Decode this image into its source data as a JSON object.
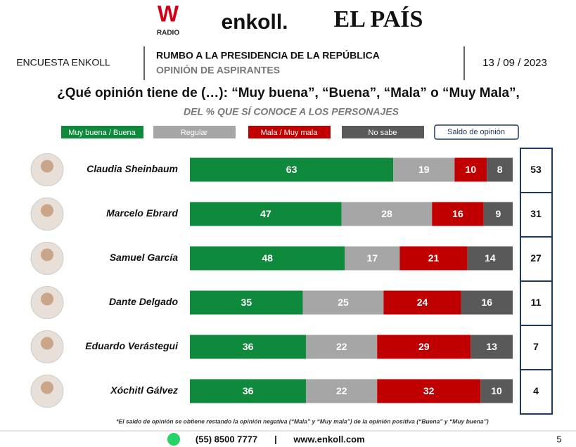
{
  "header": {
    "logo_radio_mark": "W",
    "logo_radio_text": "RADIO",
    "logo_enkoll": "enkoll.",
    "logo_elpais": "EL PAÍS",
    "survey": "ENCUESTA ENKOLL",
    "heading": "RUMBO A LA PRESIDENCIA DE LA REPÚBLICA",
    "subheading": "OPINIÓN DE ASPIRANTES",
    "date": "13 / 09 / 2023"
  },
  "chart_data": {
    "type": "stacked-bar-horizontal",
    "title": "¿Qué opinión tiene de (…): “Muy buena”, “Buena”, “Mala” o “Muy Mala”,",
    "subtitle": "DEL % QUE SÍ CONOCE A LOS PERSONAJES",
    "categories": [
      "Claudia Sheinbaum",
      "Marcelo Ebrard",
      "Samuel García",
      "Dante Delgado",
      "Eduardo Verástegui",
      "Xóchitl Gálvez"
    ],
    "xlim": [
      0,
      100
    ],
    "series": [
      {
        "name": "Muy buena / Buena",
        "color": "#0f8a3c",
        "values": [
          63,
          47,
          48,
          35,
          36,
          36
        ]
      },
      {
        "name": "Regular",
        "color": "#a6a6a6",
        "values": [
          19,
          28,
          17,
          25,
          22,
          22
        ]
      },
      {
        "name": "Mala / Muy mala",
        "color": "#c00000",
        "values": [
          10,
          16,
          21,
          24,
          29,
          32
        ]
      },
      {
        "name": "No sabe",
        "color": "#595959",
        "values": [
          8,
          9,
          14,
          16,
          13,
          10
        ]
      }
    ],
    "balance": {
      "name": "Saldo de opinión",
      "color": "#1f3864",
      "values": [
        53,
        31,
        27,
        11,
        7,
        4
      ]
    },
    "footnote": "*El saldo de opinión se obtiene restando la opinión negativa (“Mala” y “Muy mala”) de la opinión positiva (“Buena” y “Muy buena”)"
  },
  "footer": {
    "phone": "(55) 8500 7777",
    "separator": "|",
    "website": "www.enkoll.com",
    "page": "5"
  }
}
